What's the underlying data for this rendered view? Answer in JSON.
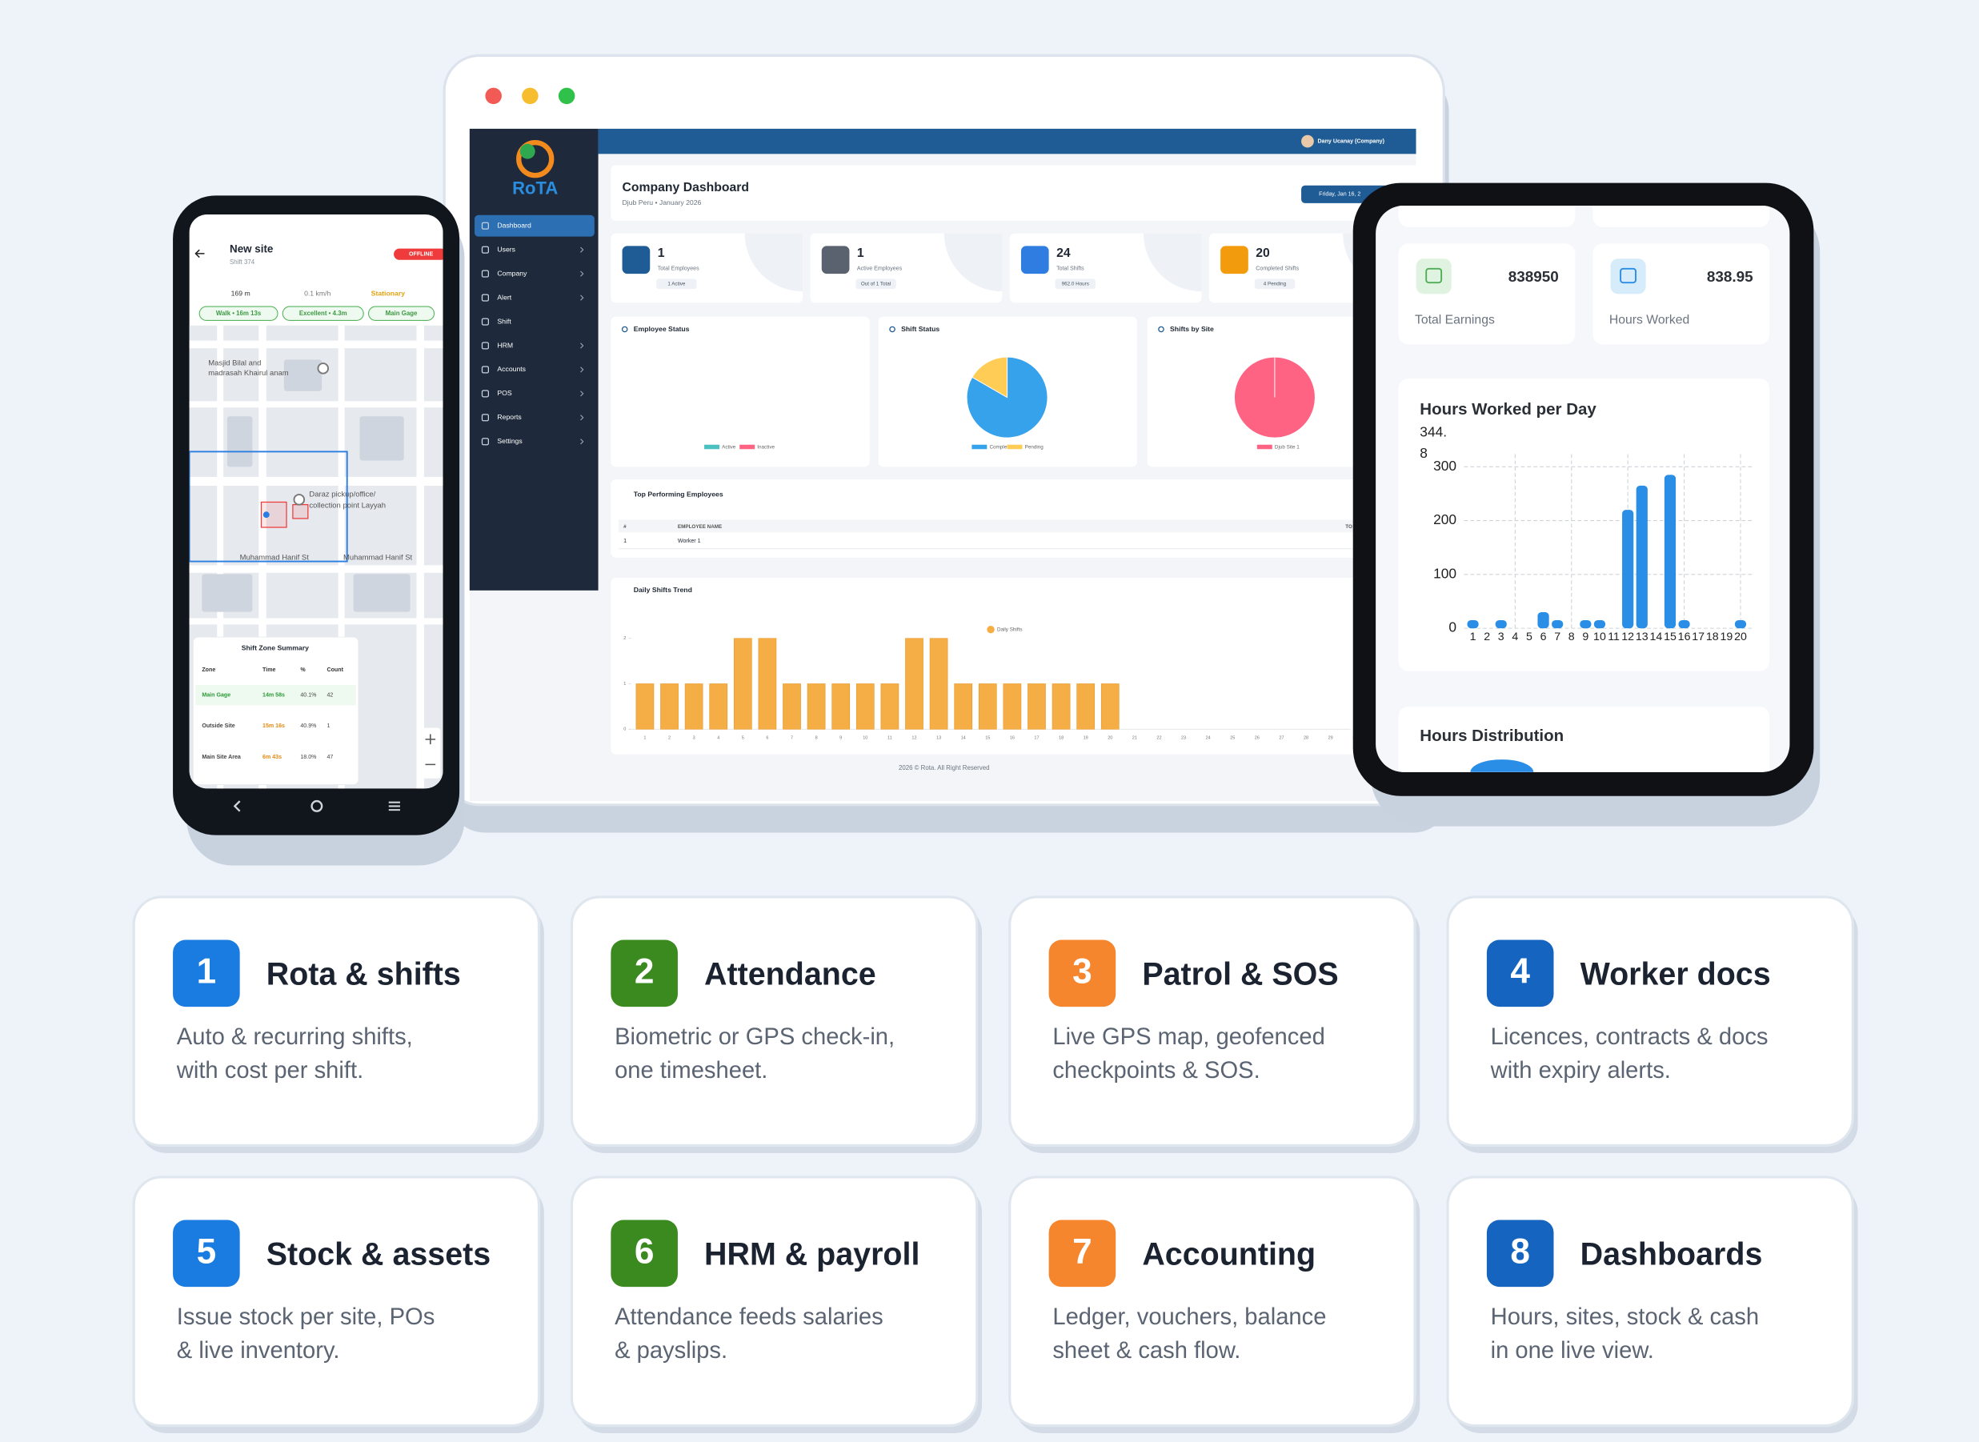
{
  "desktop": {
    "user": "Dany Ucanay (Company)",
    "logo": "RoTA",
    "menu": [
      "Dashboard",
      "Users",
      "Company",
      "Alert",
      "Shift",
      "HRM",
      "Accounts",
      "POS",
      "Reports",
      "Settings"
    ],
    "title": "Company Dashboard",
    "subtitle": "Djub Peru • January 2026",
    "date": "Friday, Jan 16, 2",
    "stats": [
      {
        "value": 1,
        "label": "Total Employees",
        "sub": "1 Active"
      },
      {
        "value": 1,
        "label": "Active Employees",
        "sub": "Out of 1 Total"
      },
      {
        "value": 24,
        "label": "Total Shifts",
        "sub": "962.0 Hours"
      },
      {
        "value": 20,
        "label": "Completed Shifts",
        "sub": "4 Pending"
      }
    ],
    "top_table": {
      "title": "Top Performing Employees",
      "header": [
        "#",
        "EMPLOYEE NAME",
        "TO"
      ],
      "rows": [
        [
          "1",
          "Worker 1"
        ]
      ]
    },
    "footer": "2026 © Rota. All Right Reserved"
  },
  "tablet": {
    "stats": [
      {
        "value": 838950,
        "label": "Total Earnings"
      },
      {
        "value": 838.95,
        "label": "Hours Worked"
      }
    ],
    "section": "Hours Distribution"
  },
  "phone": {
    "title": "New site",
    "subtitle": "Shift 374",
    "status": "OFFLINE",
    "metrics": [
      "169 m",
      "0.1 km/h",
      "Stationary"
    ],
    "chips": [
      "Walk • 16m 13s",
      "Excellent • 4.3m",
      "Main Gage"
    ],
    "places": [
      "Masjid Bilal and",
      "madrasah Khairul anam",
      "Daraz pickup/office/",
      "collection point Layyah",
      "Muhammad Hanif St",
      "Muhammad Hanif St"
    ],
    "summary": {
      "title": "Shift Zone Summary",
      "header": [
        "Zone",
        "Time",
        "%",
        "Count"
      ],
      "rows": [
        [
          "Main Gage",
          "14m 58s",
          "40.1%",
          "42"
        ],
        [
          "Outside Site",
          "15m 16s",
          "40.9%",
          "1"
        ],
        [
          "Main Site Area",
          "6m 43s",
          "18.0%",
          "47"
        ]
      ]
    }
  },
  "chart_data": [
    {
      "type": "pie",
      "title": "Employee Status",
      "labels": [
        "Active",
        "Inactive"
      ],
      "colors": [
        "#4bc0c0",
        "#ff6384"
      ]
    },
    {
      "type": "pie",
      "title": "Shift Status",
      "labels": [
        "Completed",
        "Pending"
      ],
      "values": [
        20,
        4
      ],
      "colors": [
        "#36a2eb",
        "#ffcd56"
      ]
    },
    {
      "type": "pie",
      "title": "Shifts by Site",
      "labels": [
        "Djub Site 1"
      ],
      "values": [
        24
      ],
      "colors": [
        "#ff6384"
      ]
    },
    {
      "type": "bar",
      "title": "Daily Shifts Trend",
      "categories": [
        "1",
        "2",
        "3",
        "4",
        "5",
        "6",
        "7",
        "8",
        "9",
        "10",
        "11",
        "12",
        "13",
        "14",
        "15",
        "16",
        "17",
        "18",
        "19",
        "20",
        "21",
        "22",
        "23",
        "24",
        "25",
        "26",
        "27",
        "28",
        "29",
        "30",
        "31"
      ],
      "series": [
        {
          "name": "Daily Shifts",
          "color": "#f5ad45",
          "values": [
            1,
            1,
            1,
            1,
            2,
            2,
            1,
            1,
            1,
            1,
            1,
            2,
            2,
            1,
            1,
            1,
            1,
            1,
            1,
            1,
            0,
            0,
            0,
            0,
            0,
            0,
            0,
            0,
            0,
            0,
            0
          ]
        }
      ],
      "ylim": [
        0,
        2
      ],
      "yticks": [
        0,
        1,
        2
      ],
      "grid": false
    },
    {
      "type": "bar",
      "title": "Hours Worked per Day",
      "annotation": [
        "344.",
        "8"
      ],
      "categories": [
        "1",
        "2",
        "3",
        "4",
        "5",
        "6",
        "7",
        "8",
        "9",
        "10",
        "11",
        "12",
        "13",
        "14",
        "15",
        "16",
        "17",
        "18",
        "19",
        "20"
      ],
      "series": [
        {
          "color": "#2a8de6",
          "values": [
            15,
            0,
            15,
            0,
            0,
            30,
            15,
            0,
            15,
            15,
            0,
            220,
            265,
            0,
            285,
            15,
            0,
            0,
            0,
            15
          ]
        }
      ],
      "ylim": [
        0,
        300
      ],
      "yticks": [
        0,
        100,
        200,
        300
      ],
      "grid": true
    }
  ],
  "features": [
    {
      "number": 1,
      "title": "Rota & shifts",
      "desc": [
        "Auto & recurring shifts,",
        "with cost per shift."
      ]
    },
    {
      "number": 2,
      "title": "Attendance",
      "desc": [
        "Biometric or GPS check-in,",
        "one timesheet."
      ]
    },
    {
      "number": 3,
      "title": "Patrol & SOS",
      "desc": [
        "Live GPS map, geofenced",
        "checkpoints & SOS."
      ]
    },
    {
      "number": 4,
      "title": "Worker docs",
      "desc": [
        "Licences, contracts & docs",
        "with expiry alerts."
      ]
    },
    {
      "number": 5,
      "title": "Stock & assets",
      "desc": [
        "Issue stock per site, POs",
        "& live inventory."
      ]
    },
    {
      "number": 6,
      "title": "HRM & payroll",
      "desc": [
        "Attendance feeds salaries",
        "& payslips."
      ]
    },
    {
      "number": 7,
      "title": "Accounting",
      "desc": [
        "Ledger, vouchers, balance",
        "sheet & cash flow."
      ]
    },
    {
      "number": 8,
      "title": "Dashboards",
      "desc": [
        "Hours, sites, stock & cash",
        "in one live view."
      ]
    }
  ]
}
